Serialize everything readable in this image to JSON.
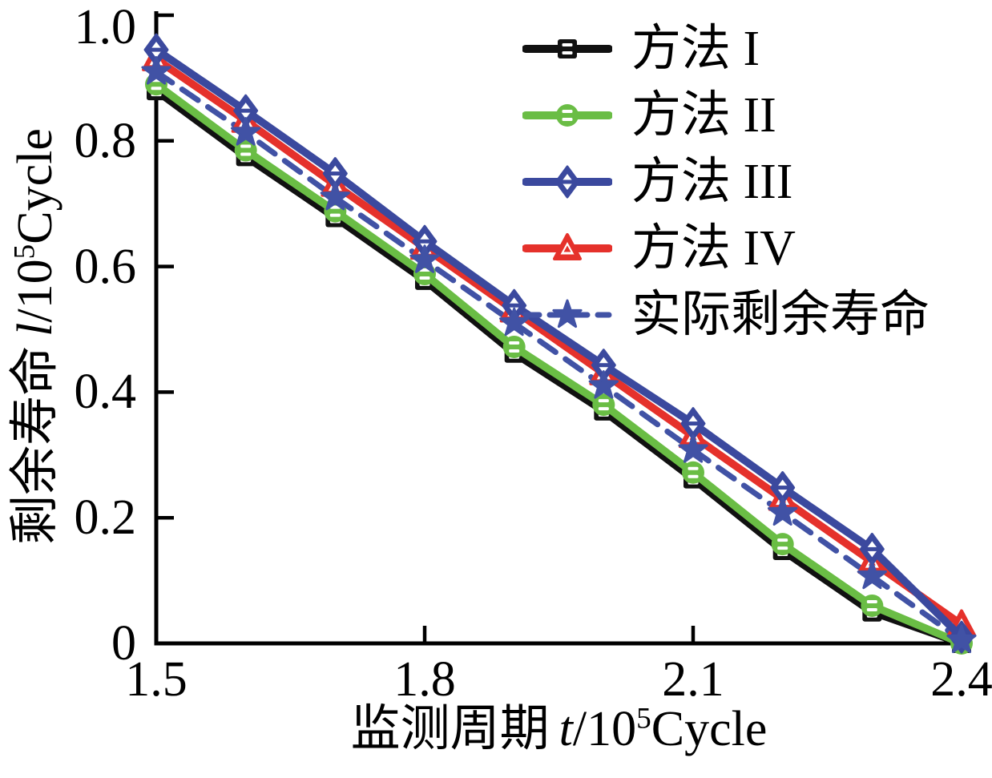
{
  "figure": {
    "background": "#ffffff",
    "axis_color": "#000000"
  },
  "chart_data": {
    "type": "line",
    "x": [
      1.5,
      1.6,
      1.7,
      1.8,
      1.9,
      2.0,
      2.1,
      2.2,
      2.3,
      2.4
    ],
    "series": [
      {
        "name": "方法 I",
        "color": "#111111",
        "marker": "square",
        "line": "solid",
        "values": [
          0.88,
          0.775,
          0.678,
          0.578,
          0.462,
          0.37,
          0.262,
          0.148,
          0.05,
          0.0
        ]
      },
      {
        "name": "方法 II",
        "color": "#6abd45",
        "marker": "circle",
        "line": "solid",
        "values": [
          0.89,
          0.785,
          0.688,
          0.588,
          0.472,
          0.38,
          0.272,
          0.158,
          0.06,
          0.0
        ]
      },
      {
        "name": "方法 III",
        "color": "#3b499e",
        "marker": "diamond",
        "line": "solid",
        "values": [
          0.945,
          0.848,
          0.748,
          0.64,
          0.538,
          0.443,
          0.35,
          0.248,
          0.15,
          0.01
        ]
      },
      {
        "name": "方法 IV",
        "color": "#e5312b",
        "marker": "triangle",
        "line": "solid",
        "values": [
          0.93,
          0.832,
          0.73,
          0.63,
          0.53,
          0.43,
          0.33,
          0.23,
          0.13,
          0.03
        ]
      },
      {
        "name": "实际剩余寿命",
        "color": "#4152a5",
        "marker": "star",
        "line": "dashed",
        "values": [
          0.91,
          0.813,
          0.71,
          0.61,
          0.51,
          0.41,
          0.308,
          0.208,
          0.107,
          0.005
        ]
      }
    ],
    "xlabel": {
      "cjk": "监测周期",
      "variable": "t",
      "unit_pre": "/10",
      "unit_sup": "5",
      "unit_post": "Cycle"
    },
    "ylabel": {
      "cjk": "剩余寿命",
      "variable": "l",
      "unit_pre": "/10",
      "unit_sup": "5",
      "unit_post": "Cycle"
    },
    "xlim": [
      1.5,
      2.4
    ],
    "ylim": [
      0,
      1.0
    ],
    "x_ticks": {
      "values": [
        1.5,
        1.8,
        2.1,
        2.4
      ],
      "labels": [
        "1.5",
        "1.8",
        "2.1",
        "2.4"
      ]
    },
    "y_ticks": {
      "values": [
        0,
        0.2,
        0.4,
        0.6,
        0.8,
        1.0
      ],
      "labels": [
        "0",
        "0.2",
        "0.4",
        "0.6",
        "0.8",
        "1.0"
      ]
    },
    "x_tick_marks": [
      1.8,
      2.1
    ],
    "y_tick_marks": [
      0.2,
      0.4,
      0.6,
      0.8,
      1.0
    ],
    "grid": false,
    "legend_position": "top-right"
  }
}
